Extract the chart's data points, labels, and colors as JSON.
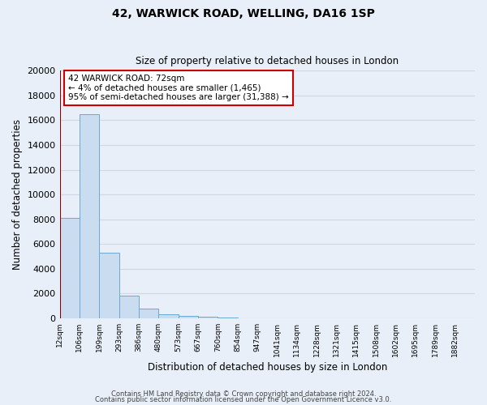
{
  "title": "42, WARWICK ROAD, WELLING, DA16 1SP",
  "subtitle": "Size of property relative to detached houses in London",
  "xlabel": "Distribution of detached houses by size in London",
  "ylabel": "Number of detached properties",
  "bar_labels": [
    "12sqm",
    "106sqm",
    "199sqm",
    "293sqm",
    "386sqm",
    "480sqm",
    "573sqm",
    "667sqm",
    "760sqm",
    "854sqm",
    "947sqm",
    "1041sqm",
    "1134sqm",
    "1228sqm",
    "1321sqm",
    "1415sqm",
    "1508sqm",
    "1602sqm",
    "1695sqm",
    "1789sqm",
    "1882sqm"
  ],
  "bar_heights": [
    8100,
    16500,
    5300,
    1850,
    800,
    300,
    200,
    130,
    100,
    0,
    0,
    0,
    0,
    0,
    0,
    0,
    0,
    0,
    0,
    0,
    0
  ],
  "bar_color": "#c9dcf0",
  "bar_edgecolor": "#6aaad4",
  "background_color": "#e8eff8",
  "grid_color": "#d0d8e8",
  "marker_label": "42 WARWICK ROAD: 72sqm",
  "annotation_line1": "← 4% of detached houses are smaller (1,465)",
  "annotation_line2": "95% of semi-detached houses are larger (31,388) →",
  "annotation_box_edgecolor": "#cc0000",
  "marker_line_color": "#8b0000",
  "ylim": [
    0,
    20000
  ],
  "yticks": [
    0,
    2000,
    4000,
    6000,
    8000,
    10000,
    12000,
    14000,
    16000,
    18000,
    20000
  ],
  "footer1": "Contains HM Land Registry data © Crown copyright and database right 2024.",
  "footer2": "Contains public sector information licensed under the Open Government Licence v3.0."
}
